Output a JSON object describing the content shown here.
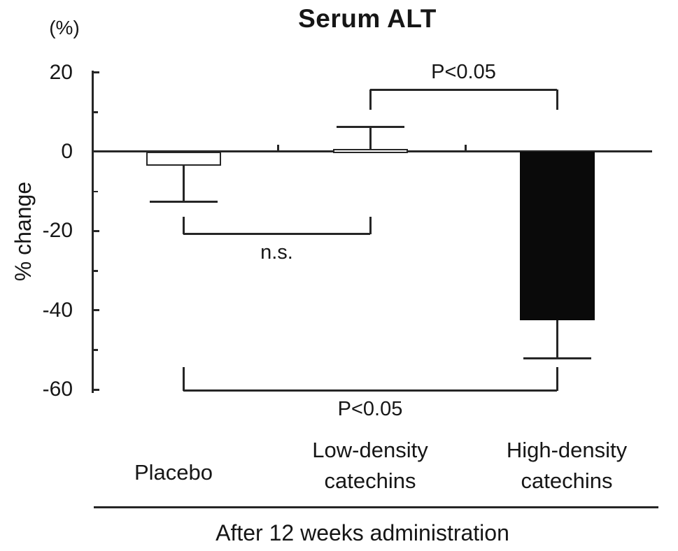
{
  "title": "Serum ALT",
  "y_axis": {
    "unit_label": "(%)",
    "axis_label": "% change",
    "major_ticks": [
      20,
      0,
      -20,
      -40,
      -60
    ],
    "minor_ticks": [
      10,
      -10,
      -30,
      -50
    ]
  },
  "footer": {
    "caption": "After 12 weeks administration"
  },
  "chart_data": {
    "type": "bar",
    "title": "Serum ALT",
    "xlabel": "",
    "ylabel": "% change",
    "y_unit": "(%)",
    "ylim": [
      -60,
      20
    ],
    "grid": false,
    "legend": false,
    "categories": [
      "Placebo",
      "Low-density\ncatechins",
      "High-density\ncatechins"
    ],
    "values": [
      -3.5,
      0.6,
      -42.5
    ],
    "error_tips": [
      -12.7,
      6.2,
      -52.2
    ],
    "bar_fills": [
      "white",
      "white",
      "black"
    ],
    "annotations": [
      {
        "from": 1,
        "to": 2,
        "label": "P<0.05",
        "y": 15.7,
        "label_side": "above"
      },
      {
        "from": 0,
        "to": 1,
        "label": "n.s.",
        "y": -20.8,
        "label_side": "below"
      },
      {
        "from": 0,
        "to": 2,
        "label": "P<0.05",
        "y": -60.3,
        "label_side": "below"
      }
    ],
    "footnote": "After 12 weeks administration"
  }
}
